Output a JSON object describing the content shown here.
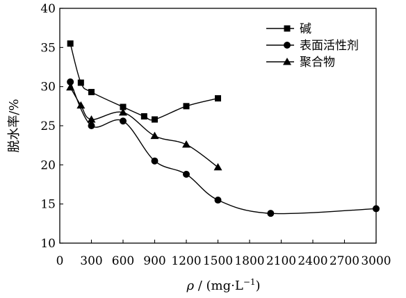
{
  "chart_data": {
    "type": "line",
    "xlabel_var": "ρ",
    "xlabel_unit": " / (mg·L",
    "xlabel_sup": "−1",
    "xlabel_close": ")",
    "ylabel": "脱水率/%",
    "xlim": [
      0,
      3000
    ],
    "ylim": [
      10,
      40
    ],
    "xticks": [
      0,
      300,
      600,
      900,
      1200,
      1500,
      1800,
      2100,
      2400,
      2700,
      3000
    ],
    "yticks": [
      10,
      15,
      20,
      25,
      30,
      35,
      40
    ],
    "legend_position": "top-right",
    "series": [
      {
        "name": "碱",
        "marker": "square",
        "x": [
          100,
          200,
          300,
          600,
          800,
          900,
          1200,
          1500
        ],
        "y": [
          35.5,
          30.5,
          29.3,
          27.4,
          26.2,
          25.8,
          27.5,
          28.5
        ]
      },
      {
        "name": "表面活性剂",
        "marker": "circle",
        "x": [
          100,
          300,
          600,
          900,
          1200,
          1500,
          2000,
          3000
        ],
        "y": [
          30.6,
          25.0,
          25.6,
          20.5,
          18.8,
          15.5,
          13.8,
          14.4
        ]
      },
      {
        "name": "聚合物",
        "marker": "triangle",
        "x": [
          100,
          200,
          300,
          600,
          900,
          1200,
          1500
        ],
        "y": [
          29.9,
          27.6,
          25.8,
          26.7,
          23.7,
          22.6,
          19.7
        ]
      }
    ]
  }
}
